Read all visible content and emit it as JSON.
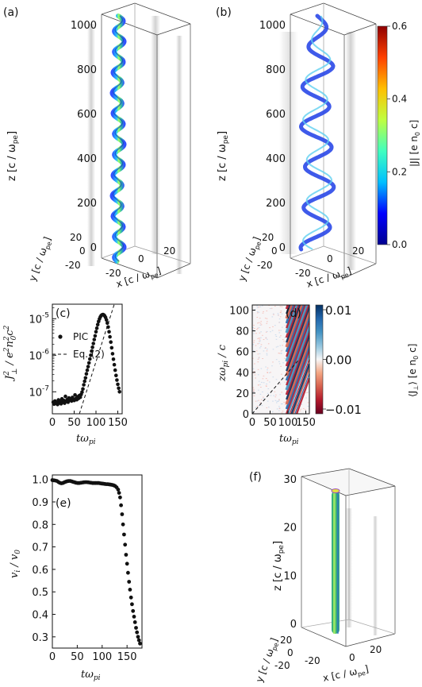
{
  "panels": {
    "a": {
      "label": "(a)"
    },
    "b": {
      "label": "(b)"
    },
    "c": {
      "label": "(c)"
    },
    "d": {
      "label": "(d)"
    },
    "e": {
      "label": "(e)"
    },
    "f": {
      "label": "(f)"
    }
  },
  "box3d": {
    "z_label": "z [c / ω",
    "z_label_sub": "pe",
    "y_label": "y [c / ω",
    "y_label_sub": "pe",
    "x_label": "x [c / ω",
    "x_label_sub": "pe",
    "z_ticks_ab": [
      "0",
      "200",
      "400",
      "600",
      "800",
      "1000"
    ],
    "y_ticks": [
      "20",
      "0",
      "-20"
    ],
    "x_ticks": [
      "-20",
      "0",
      "20"
    ],
    "z_ticks_f": [
      "0",
      "10",
      "20",
      "30"
    ]
  },
  "colorbar_b": {
    "label": "|J| [e n",
    "label_sub": "0",
    "label_end": " c]",
    "ticks": [
      "0.0",
      "0.2",
      "0.4",
      "0.6"
    ],
    "range": [
      0,
      0.6
    ],
    "colors": [
      "#00008f",
      "#0000ff",
      "#00bfff",
      "#40ffbf",
      "#bfff40",
      "#ffbf00",
      "#ff4000",
      "#8f0000"
    ]
  },
  "colorbar_d": {
    "label": "⟨J",
    "label_sub": "⊥",
    "label_end": "⟩ [e n",
    "label_sub2": "0",
    "label_end2": " c]",
    "ticks": [
      "0.01",
      "0.00",
      "−0.01"
    ],
    "range": [
      -0.01,
      0.01
    ],
    "colors": [
      "#67001f",
      "#b2182b",
      "#d6604d",
      "#f4a582",
      "#f7f7f7",
      "#92c5de",
      "#4393c3",
      "#2166ac",
      "#053061"
    ]
  },
  "chart_data": [
    {
      "panel": "c",
      "type": "scatter",
      "ylabel": "J²⊥ / e²n₀²c²",
      "xlabel": "tω_pi",
      "xlim": [
        0,
        160
      ],
      "ylim": [
        2.5e-08,
        2.5e-05
      ],
      "yscale": "log",
      "x_ticks": [
        "0",
        "50",
        "100",
        "150"
      ],
      "y_ticks": [
        {
          "v": 1e-07,
          "label": "10",
          "exp": "-7"
        },
        {
          "v": 1e-06,
          "label": "10",
          "exp": "-6"
        },
        {
          "v": 1e-05,
          "label": "10",
          "exp": "-5"
        }
      ],
      "legend": [
        {
          "name": "PIC",
          "style": "dots"
        },
        {
          "name": "Eq. (2)",
          "style": "dashed"
        }
      ],
      "series": [
        {
          "name": "PIC",
          "x": [
            2,
            4,
            6,
            8,
            10,
            12,
            14,
            16,
            18,
            20,
            22,
            24,
            26,
            28,
            30,
            32,
            34,
            36,
            38,
            40,
            42,
            44,
            46,
            48,
            50,
            52,
            54,
            56,
            58,
            60,
            62,
            64,
            66,
            68,
            70,
            72,
            74,
            76,
            78,
            80,
            82,
            84,
            86,
            88,
            90,
            92,
            94,
            96,
            98,
            100,
            102,
            104,
            106,
            108,
            110,
            112,
            114,
            116,
            118,
            120,
            122,
            124,
            126,
            128,
            130,
            132,
            134,
            136,
            138,
            140,
            142,
            144,
            146,
            148,
            150,
            152,
            154
          ],
          "y": [
            5.2e-08,
            4.6e-08,
            5.6e-08,
            4.8e-08,
            5.1e-08,
            4.5e-08,
            6e-08,
            5e-08,
            5.4e-08,
            4.7e-08,
            6.4e-08,
            5.3e-08,
            5.8e-08,
            4.9e-08,
            7.5e-08,
            5.5e-08,
            6.1e-08,
            5.2e-08,
            6.8e-08,
            5.9e-08,
            6.3e-08,
            5.6e-08,
            7e-08,
            6.2e-08,
            5.8e-08,
            8.2e-08,
            6.5e-08,
            6.1e-08,
            7.3e-08,
            6.6e-08,
            7.9e-08,
            7.1e-08,
            8.4e-08,
            9.8e-08,
            1.2e-07,
            1.55e-07,
            1.95e-07,
            2.4e-07,
            3.1e-07,
            3.9e-07,
            4.9e-07,
            6.2e-07,
            7.9e-07,
            1e-06,
            1.3e-06,
            1.65e-06,
            2.1e-06,
            2.7e-06,
            3.4e-06,
            4.4e-06,
            5.5e-06,
            6.9e-06,
            8.4e-06,
            9.9e-06,
            1.12e-05,
            1.22e-05,
            1.28e-05,
            1.3e-05,
            1.27e-05,
            1.2e-05,
            1.08e-05,
            9.3e-06,
            7.6e-06,
            5.9e-06,
            4.4e-06,
            3.2e-06,
            2.3e-06,
            1.6e-06,
            1.1e-06,
            7.8e-07,
            5.5e-07,
            3.9e-07,
            2.8e-07,
            2.1e-07,
            1.6e-07,
            1.25e-07,
            1e-07
          ]
        },
        {
          "name": "Eq. (2)",
          "x": [
            62,
            142
          ],
          "y": [
            2.5e-08,
            2.5e-05
          ]
        }
      ]
    },
    {
      "panel": "d",
      "type": "heatmap",
      "ylabel": "zω_pi / c",
      "xlabel": "tω_pi",
      "xlim": [
        0,
        160
      ],
      "ylim": [
        0,
        105
      ],
      "x_ticks": [
        "0",
        "50",
        "100",
        "150"
      ],
      "y_ticks": [
        "0",
        "20",
        "40",
        "60",
        "80",
        "100"
      ],
      "annotation_line": {
        "style": "dashed",
        "x": [
          0,
          130
        ],
        "y": [
          0,
          52
        ]
      }
    },
    {
      "panel": "e",
      "type": "scatter",
      "ylabel": "v_i / v_0",
      "xlabel": "tω_pi",
      "xlim": [
        0,
        180
      ],
      "ylim": [
        0.25,
        1.02
      ],
      "x_ticks": [
        "0",
        "50",
        "100",
        "150"
      ],
      "y_ticks": [
        "0.3",
        "0.4",
        "0.5",
        "0.6",
        "0.7",
        "0.8",
        "0.9",
        "1.0"
      ],
      "series": [
        {
          "name": "",
          "x": [
            0,
            3,
            6,
            9,
            12,
            15,
            18,
            21,
            24,
            27,
            30,
            33,
            36,
            39,
            42,
            45,
            48,
            51,
            54,
            57,
            60,
            63,
            66,
            69,
            72,
            75,
            78,
            81,
            84,
            87,
            90,
            93,
            96,
            99,
            102,
            105,
            108,
            111,
            114,
            117,
            120,
            123,
            126,
            129,
            132,
            134,
            136,
            138,
            140,
            142,
            144,
            146,
            148,
            150,
            152,
            154,
            156,
            158,
            160,
            162,
            164,
            166,
            168,
            170,
            172,
            174,
            176
          ],
          "y": [
            0.997,
            0.996,
            0.995,
            0.993,
            0.989,
            0.985,
            0.983,
            0.984,
            0.987,
            0.99,
            0.992,
            0.993,
            0.993,
            0.991,
            0.989,
            0.987,
            0.985,
            0.984,
            0.984,
            0.985,
            0.986,
            0.987,
            0.988,
            0.988,
            0.987,
            0.986,
            0.985,
            0.984,
            0.984,
            0.984,
            0.984,
            0.984,
            0.983,
            0.982,
            0.981,
            0.98,
            0.979,
            0.979,
            0.978,
            0.977,
            0.976,
            0.974,
            0.971,
            0.965,
            0.955,
            0.94,
            0.92,
            0.885,
            0.845,
            0.8,
            0.755,
            0.71,
            0.665,
            0.625,
            0.585,
            0.545,
            0.51,
            0.475,
            0.445,
            0.415,
            0.39,
            0.365,
            0.34,
            0.32,
            0.3,
            0.285,
            0.27
          ]
        }
      ]
    }
  ]
}
